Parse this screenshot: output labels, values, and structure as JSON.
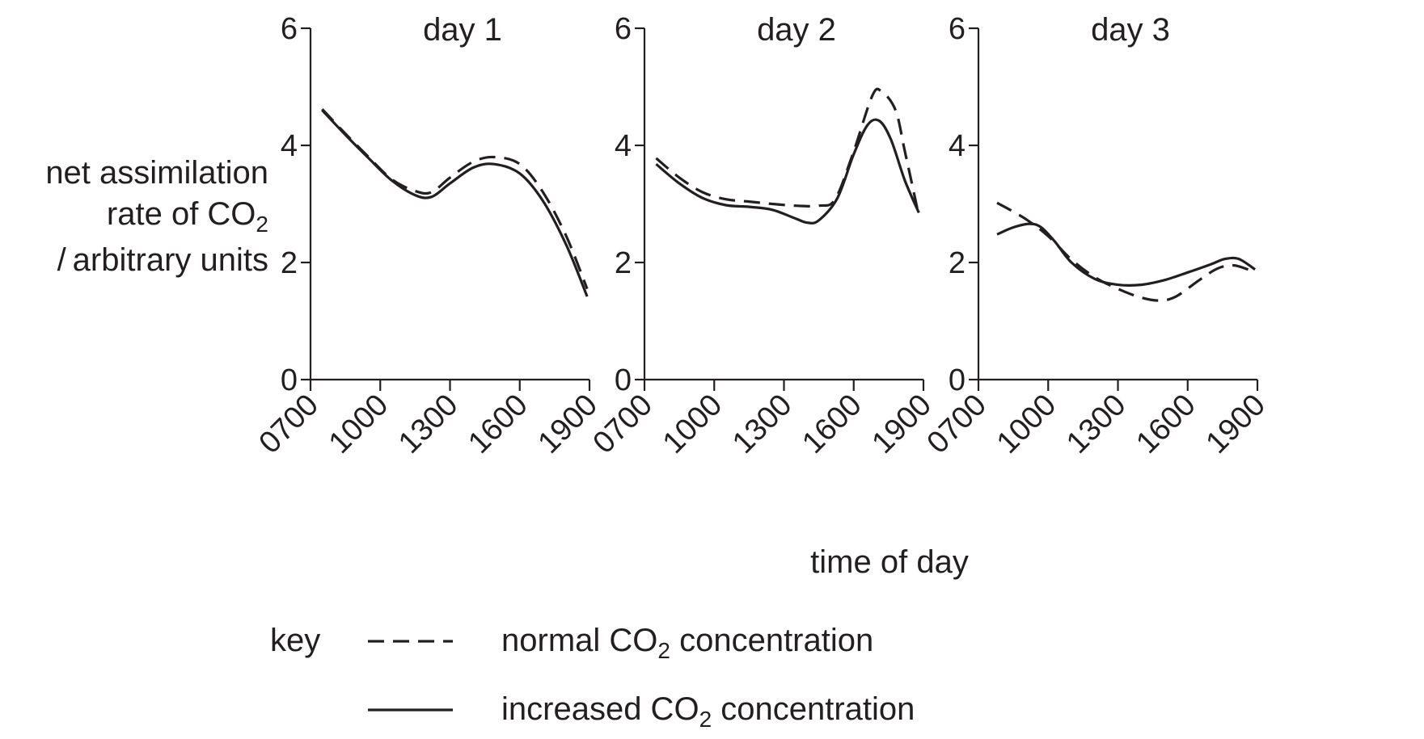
{
  "chart_data": {
    "type": "line",
    "ylabel": [
      "net assimilation",
      "rate of CO₂",
      "/ arbitrary units"
    ],
    "xlabel": "time of day",
    "yticks": [
      0,
      2,
      4,
      6
    ],
    "xticks": [
      "0700",
      "1000",
      "1300",
      "1600",
      "1900"
    ],
    "xlim": [
      7,
      19
    ],
    "ylim": [
      0,
      6
    ],
    "grid": false,
    "legend": {
      "placement": "bottom-left",
      "key_label": "key",
      "entries": [
        {
          "style": "dashed",
          "label": "normal CO₂ concentration"
        },
        {
          "style": "solid",
          "label": "increased CO₂ concentration"
        }
      ]
    },
    "panels": [
      {
        "title": "day 1",
        "series": [
          {
            "style": "dashed",
            "x": [
              7.5,
              8.5,
              9.5,
              10.5,
              11.5,
              12.2,
              13,
              14,
              14.9,
              16,
              17,
              18,
              18.9
            ],
            "y": [
              4.62,
              4.2,
              3.8,
              3.42,
              3.22,
              3.2,
              3.45,
              3.72,
              3.8,
              3.68,
              3.2,
              2.45,
              1.55
            ]
          },
          {
            "style": "solid",
            "x": [
              7.5,
              8.5,
              9.5,
              10.5,
              11.5,
              12.2,
              13,
              14,
              14.9,
              16,
              17,
              18,
              18.9
            ],
            "y": [
              4.6,
              4.18,
              3.78,
              3.4,
              3.15,
              3.12,
              3.35,
              3.62,
              3.68,
              3.52,
              3.05,
              2.3,
              1.42
            ]
          }
        ]
      },
      {
        "title": "day 2",
        "series": [
          {
            "style": "dashed",
            "x": [
              7.5,
              8.5,
              9.5,
              10.5,
              11.5,
              12.5,
              13.5,
              14.5,
              15.2,
              16,
              16.8,
              17.2,
              17.8,
              18.2,
              18.8
            ],
            "y": [
              3.78,
              3.45,
              3.2,
              3.08,
              3.04,
              3.0,
              2.97,
              2.97,
              3.08,
              3.9,
              4.85,
              4.92,
              4.6,
              3.9,
              2.8
            ]
          },
          {
            "style": "solid",
            "x": [
              7.5,
              8.5,
              9.5,
              10.5,
              11.5,
              12.5,
              13.5,
              14,
              14.5,
              15.3,
              16,
              16.6,
              17.1,
              17.6,
              18.2,
              18.8
            ],
            "y": [
              3.68,
              3.35,
              3.1,
              2.98,
              2.95,
              2.9,
              2.75,
              2.68,
              2.72,
              3.1,
              3.85,
              4.35,
              4.42,
              4.1,
              3.4,
              2.85
            ]
          }
        ]
      },
      {
        "title": "day 3",
        "series": [
          {
            "style": "dashed",
            "x": [
              7.8,
              9,
              10,
              11,
              12,
              13,
              14,
              14.8,
              15.5,
              16.5,
              17.3,
              18,
              18.8
            ],
            "y": [
              3.02,
              2.75,
              2.45,
              2.05,
              1.75,
              1.55,
              1.4,
              1.35,
              1.42,
              1.7,
              1.9,
              1.95,
              1.85
            ]
          },
          {
            "style": "solid",
            "x": [
              7.8,
              8.5,
              9.2,
              9.7,
              10.3,
              11,
              12,
              13,
              14,
              15,
              16,
              17,
              17.6,
              18.2,
              18.9
            ],
            "y": [
              2.48,
              2.6,
              2.66,
              2.6,
              2.35,
              2.0,
              1.72,
              1.62,
              1.62,
              1.7,
              1.83,
              1.97,
              2.06,
              2.06,
              1.88
            ]
          }
        ]
      }
    ]
  }
}
